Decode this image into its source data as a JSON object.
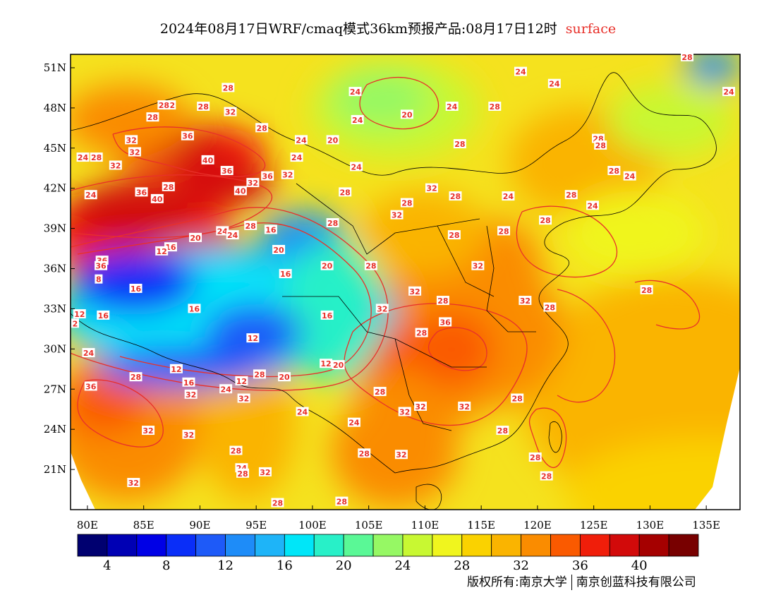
{
  "header": {
    "title": "2024年08月17日WRF/cmaq模式36km预报产品:08月17日12时",
    "layer": "surface"
  },
  "map": {
    "lon_ticks": [
      "80E",
      "85E",
      "90E",
      "95E",
      "100E",
      "105E",
      "110E",
      "115E",
      "120E",
      "125E",
      "130E",
      "135E"
    ],
    "lon_values": [
      80,
      85,
      90,
      95,
      100,
      105,
      110,
      115,
      120,
      125,
      130,
      135
    ],
    "lat_ticks": [
      "51N",
      "48N",
      "45N",
      "42N",
      "39N",
      "36N",
      "33N",
      "30N",
      "27N",
      "24N",
      "21N"
    ],
    "lat_values": [
      51,
      48,
      45,
      42,
      39,
      36,
      33,
      30,
      27,
      24,
      21
    ],
    "lon_range": [
      78.5,
      138
    ],
    "lat_range": [
      18,
      52
    ],
    "contour_labels": [
      {
        "t": "28",
        "lon": 133.3,
        "lat": 51.8
      },
      {
        "t": "24",
        "lon": 118.5,
        "lat": 50.7
      },
      {
        "t": "24",
        "lon": 121.5,
        "lat": 49.8
      },
      {
        "t": "28",
        "lon": 92.5,
        "lat": 49.5
      },
      {
        "t": "24",
        "lon": 103.8,
        "lat": 49.2
      },
      {
        "t": "24",
        "lon": 137.0,
        "lat": 49.2
      },
      {
        "t": "32",
        "lon": 87.3,
        "lat": 48.2
      },
      {
        "t": "28",
        "lon": 86.8,
        "lat": 48.2
      },
      {
        "t": "28",
        "lon": 90.3,
        "lat": 48.1
      },
      {
        "t": "24",
        "lon": 112.4,
        "lat": 48.1
      },
      {
        "t": "28",
        "lon": 116.2,
        "lat": 48.1
      },
      {
        "t": "32",
        "lon": 92.7,
        "lat": 47.7
      },
      {
        "t": "20",
        "lon": 108.4,
        "lat": 47.5
      },
      {
        "t": "28",
        "lon": 85.8,
        "lat": 47.3
      },
      {
        "t": "24",
        "lon": 104.0,
        "lat": 47.1
      },
      {
        "t": "28",
        "lon": 95.5,
        "lat": 46.5
      },
      {
        "t": "36",
        "lon": 88.9,
        "lat": 45.9
      },
      {
        "t": "32",
        "lon": 83.9,
        "lat": 45.6
      },
      {
        "t": "24",
        "lon": 99.0,
        "lat": 45.6
      },
      {
        "t": "20",
        "lon": 101.8,
        "lat": 45.6
      },
      {
        "t": "28",
        "lon": 125.4,
        "lat": 45.7
      },
      {
        "t": "28",
        "lon": 125.6,
        "lat": 45.2
      },
      {
        "t": "28",
        "lon": 113.1,
        "lat": 45.3
      },
      {
        "t": "32",
        "lon": 84.2,
        "lat": 44.7
      },
      {
        "t": "24",
        "lon": 98.6,
        "lat": 44.3
      },
      {
        "t": "24",
        "lon": 79.6,
        "lat": 44.3
      },
      {
        "t": "28",
        "lon": 80.8,
        "lat": 44.3
      },
      {
        "t": "32",
        "lon": 82.5,
        "lat": 43.7
      },
      {
        "t": "40",
        "lon": 90.7,
        "lat": 44.1
      },
      {
        "t": "24",
        "lon": 103.9,
        "lat": 43.6
      },
      {
        "t": "36",
        "lon": 92.4,
        "lat": 43.3
      },
      {
        "t": "36",
        "lon": 96.0,
        "lat": 42.9
      },
      {
        "t": "32",
        "lon": 97.8,
        "lat": 43.0
      },
      {
        "t": "28",
        "lon": 126.8,
        "lat": 43.3
      },
      {
        "t": "24",
        "lon": 128.2,
        "lat": 42.9
      },
      {
        "t": "32",
        "lon": 94.7,
        "lat": 42.4
      },
      {
        "t": "28",
        "lon": 87.2,
        "lat": 42.1
      },
      {
        "t": "40",
        "lon": 93.6,
        "lat": 41.8
      },
      {
        "t": "32",
        "lon": 110.6,
        "lat": 42.0
      },
      {
        "t": "28",
        "lon": 102.9,
        "lat": 41.7
      },
      {
        "t": "36",
        "lon": 84.8,
        "lat": 41.7
      },
      {
        "t": "28",
        "lon": 112.7,
        "lat": 41.4
      },
      {
        "t": "24",
        "lon": 117.4,
        "lat": 41.4
      },
      {
        "t": "28",
        "lon": 123.0,
        "lat": 41.5
      },
      {
        "t": "24",
        "lon": 80.3,
        "lat": 41.5
      },
      {
        "t": "40",
        "lon": 86.2,
        "lat": 41.2
      },
      {
        "t": "28",
        "lon": 108.4,
        "lat": 40.9
      },
      {
        "t": "24",
        "lon": 124.9,
        "lat": 40.7
      },
      {
        "t": "32",
        "lon": 107.5,
        "lat": 40.0
      },
      {
        "t": "28",
        "lon": 120.7,
        "lat": 39.6
      },
      {
        "t": "28",
        "lon": 101.8,
        "lat": 39.4
      },
      {
        "t": "28",
        "lon": 94.5,
        "lat": 39.2
      },
      {
        "t": "16",
        "lon": 96.3,
        "lat": 38.9
      },
      {
        "t": "24",
        "lon": 92.0,
        "lat": 38.8
      },
      {
        "t": "24",
        "lon": 92.9,
        "lat": 38.5
      },
      {
        "t": "28",
        "lon": 117.0,
        "lat": 38.8
      },
      {
        "t": "28",
        "lon": 112.6,
        "lat": 38.5
      },
      {
        "t": "20",
        "lon": 89.6,
        "lat": 38.3
      },
      {
        "t": "16",
        "lon": 87.4,
        "lat": 37.6
      },
      {
        "t": "12",
        "lon": 86.6,
        "lat": 37.3
      },
      {
        "t": "20",
        "lon": 97.0,
        "lat": 37.4
      },
      {
        "t": "36",
        "lon": 81.3,
        "lat": 36.6
      },
      {
        "t": "28",
        "lon": 105.2,
        "lat": 36.2
      },
      {
        "t": "32",
        "lon": 114.7,
        "lat": 36.2
      },
      {
        "t": "20",
        "lon": 101.3,
        "lat": 36.2
      },
      {
        "t": "36",
        "lon": 81.2,
        "lat": 36.2
      },
      {
        "t": "16",
        "lon": 97.6,
        "lat": 35.6
      },
      {
        "t": "8",
        "lon": 81.0,
        "lat": 35.2
      },
      {
        "t": "16",
        "lon": 84.3,
        "lat": 34.5
      },
      {
        "t": "32",
        "lon": 109.1,
        "lat": 34.3
      },
      {
        "t": "28",
        "lon": 129.7,
        "lat": 34.4
      },
      {
        "t": "32",
        "lon": 118.9,
        "lat": 33.6
      },
      {
        "t": "28",
        "lon": 111.6,
        "lat": 33.6
      },
      {
        "t": "16",
        "lon": 89.5,
        "lat": 33.0
      },
      {
        "t": "32",
        "lon": 106.2,
        "lat": 33.0
      },
      {
        "t": "28",
        "lon": 121.1,
        "lat": 33.1
      },
      {
        "t": "12",
        "lon": 79.3,
        "lat": 32.6
      },
      {
        "t": "16",
        "lon": 81.4,
        "lat": 32.5
      },
      {
        "t": "16",
        "lon": 101.3,
        "lat": 32.5
      },
      {
        "t": "36",
        "lon": 111.8,
        "lat": 32.0
      },
      {
        "t": "2",
        "lon": 78.7,
        "lat": 31.9
      },
      {
        "t": "28",
        "lon": 109.7,
        "lat": 31.2
      },
      {
        "t": "12",
        "lon": 94.7,
        "lat": 30.8
      },
      {
        "t": "24",
        "lon": 80.1,
        "lat": 29.7
      },
      {
        "t": "12",
        "lon": 101.2,
        "lat": 28.9
      },
      {
        "t": "20",
        "lon": 102.3,
        "lat": 28.8
      },
      {
        "t": "12",
        "lon": 87.9,
        "lat": 28.5
      },
      {
        "t": "28",
        "lon": 84.3,
        "lat": 27.9
      },
      {
        "t": "28",
        "lon": 95.3,
        "lat": 28.1
      },
      {
        "t": "20",
        "lon": 97.5,
        "lat": 27.9
      },
      {
        "t": "16",
        "lon": 89.0,
        "lat": 27.5
      },
      {
        "t": "12",
        "lon": 93.7,
        "lat": 27.6
      },
      {
        "t": "36",
        "lon": 80.3,
        "lat": 27.2
      },
      {
        "t": "24",
        "lon": 92.3,
        "lat": 27.0
      },
      {
        "t": "32",
        "lon": 89.2,
        "lat": 26.6
      },
      {
        "t": "28",
        "lon": 106.0,
        "lat": 26.8
      },
      {
        "t": "32",
        "lon": 93.9,
        "lat": 26.3
      },
      {
        "t": "28",
        "lon": 118.2,
        "lat": 26.3
      },
      {
        "t": "32",
        "lon": 113.5,
        "lat": 25.7
      },
      {
        "t": "32",
        "lon": 109.6,
        "lat": 25.7
      },
      {
        "t": "32",
        "lon": 108.2,
        "lat": 25.3
      },
      {
        "t": "24",
        "lon": 99.1,
        "lat": 25.3
      },
      {
        "t": "24",
        "lon": 103.7,
        "lat": 24.5
      },
      {
        "t": "28",
        "lon": 116.9,
        "lat": 23.9
      },
      {
        "t": "32",
        "lon": 85.4,
        "lat": 23.9
      },
      {
        "t": "32",
        "lon": 89.0,
        "lat": 23.6
      },
      {
        "t": "28",
        "lon": 93.2,
        "lat": 22.4
      },
      {
        "t": "28",
        "lon": 104.6,
        "lat": 22.2
      },
      {
        "t": "32",
        "lon": 107.9,
        "lat": 22.1
      },
      {
        "t": "28",
        "lon": 119.8,
        "lat": 21.9
      },
      {
        "t": "24",
        "lon": 93.7,
        "lat": 21.1
      },
      {
        "t": "32",
        "lon": 95.8,
        "lat": 20.8
      },
      {
        "t": "28",
        "lon": 93.8,
        "lat": 20.7
      },
      {
        "t": "28",
        "lon": 120.8,
        "lat": 20.5
      },
      {
        "t": "32",
        "lon": 84.1,
        "lat": 20.0
      },
      {
        "t": "28",
        "lon": 96.9,
        "lat": 18.5
      },
      {
        "t": "28",
        "lon": 102.6,
        "lat": 18.6
      }
    ]
  },
  "colorbar": {
    "colors": [
      "#000070",
      "#0000b4",
      "#0000e6",
      "#0a2ef8",
      "#1e5af8",
      "#1e8cf8",
      "#1eb4f8",
      "#00e6f8",
      "#28f0c8",
      "#5af896",
      "#96f864",
      "#c8f832",
      "#f0f51e",
      "#fad200",
      "#fab400",
      "#fa8c00",
      "#fa5a00",
      "#f01e0a",
      "#d20a0a",
      "#a50000",
      "#780000"
    ],
    "ticks": [
      "4",
      "8",
      "12",
      "16",
      "20",
      "24",
      "28",
      "32",
      "36",
      "40"
    ]
  },
  "footer": {
    "copyright_left": "版权所有:南京大学",
    "copyright_right": "南京创蓝科技有限公司"
  }
}
